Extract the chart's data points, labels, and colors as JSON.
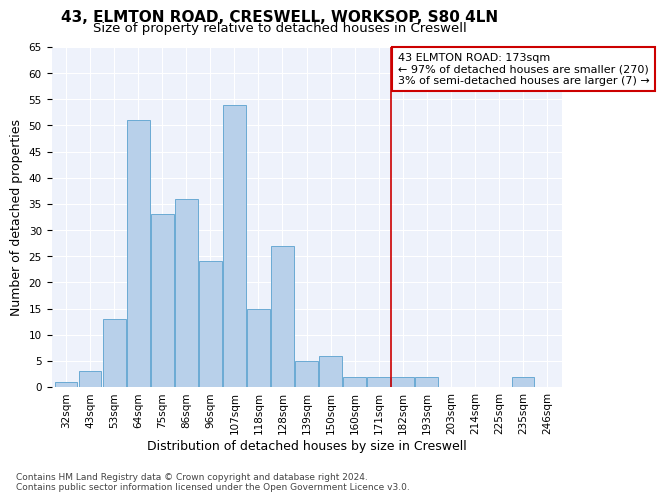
{
  "title1": "43, ELMTON ROAD, CRESWELL, WORKSOP, S80 4LN",
  "title2": "Size of property relative to detached houses in Creswell",
  "xlabel": "Distribution of detached houses by size in Creswell",
  "ylabel": "Number of detached properties",
  "categories": [
    "32sqm",
    "43sqm",
    "53sqm",
    "64sqm",
    "75sqm",
    "86sqm",
    "96sqm",
    "107sqm",
    "118sqm",
    "128sqm",
    "139sqm",
    "150sqm",
    "160sqm",
    "171sqm",
    "182sqm",
    "193sqm",
    "203sqm",
    "214sqm",
    "225sqm",
    "235sqm",
    "246sqm"
  ],
  "values": [
    1,
    3,
    13,
    51,
    33,
    36,
    24,
    54,
    15,
    27,
    5,
    6,
    2,
    2,
    2,
    2,
    0,
    0,
    0,
    2,
    0
  ],
  "bar_color": "#b8d0ea",
  "bar_edge_color": "#6aaad4",
  "vline_index": 13.5,
  "annotation_text": "43 ELMTON ROAD: 173sqm\n← 97% of detached houses are smaller (270)\n3% of semi-detached houses are larger (7) →",
  "annotation_box_color": "#ffffff",
  "annotation_box_edge_color": "#cc0000",
  "vline_color": "#cc0000",
  "ylim": [
    0,
    65
  ],
  "yticks": [
    0,
    5,
    10,
    15,
    20,
    25,
    30,
    35,
    40,
    45,
    50,
    55,
    60,
    65
  ],
  "footer1": "Contains HM Land Registry data © Crown copyright and database right 2024.",
  "footer2": "Contains public sector information licensed under the Open Government Licence v3.0.",
  "background_color": "#eef2fb",
  "title1_fontsize": 11,
  "title2_fontsize": 9.5,
  "axis_label_fontsize": 9,
  "tick_fontsize": 7.5,
  "annotation_fontsize": 8,
  "footer_fontsize": 6.5
}
